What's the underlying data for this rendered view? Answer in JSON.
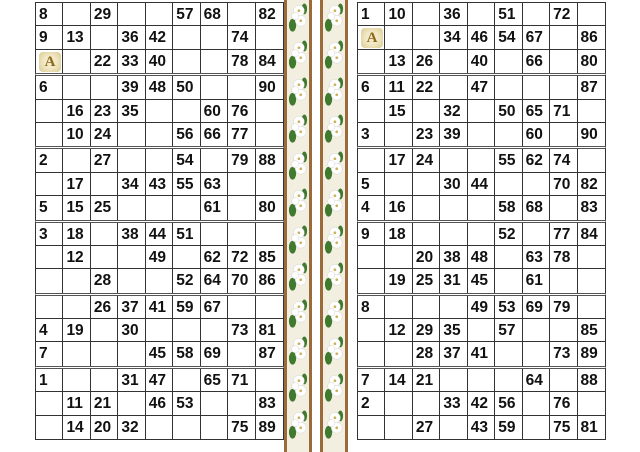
{
  "logo_letter": "A",
  "left_tickets": [
    [
      [
        "8",
        "",
        "29",
        "",
        "",
        "57",
        "68",
        "",
        "82"
      ],
      [
        "9",
        "13",
        "",
        "36",
        "42",
        "",
        "",
        "74",
        ""
      ],
      [
        "A",
        "",
        "22",
        "33",
        "40",
        "",
        "",
        "78",
        "84"
      ]
    ],
    [
      [
        "6",
        "",
        "",
        "39",
        "48",
        "50",
        "",
        "",
        "90"
      ],
      [
        "",
        "16",
        "23",
        "35",
        "",
        "",
        "60",
        "76",
        ""
      ],
      [
        "",
        "10",
        "24",
        "",
        "",
        "56",
        "66",
        "77",
        ""
      ]
    ],
    [
      [
        "2",
        "",
        "27",
        "",
        "",
        "54",
        "",
        "79",
        "88"
      ],
      [
        "",
        "17",
        "",
        "34",
        "43",
        "55",
        "63",
        "",
        ""
      ],
      [
        "5",
        "15",
        "25",
        "",
        "",
        "",
        "61",
        "",
        "80"
      ]
    ],
    [
      [
        "3",
        "18",
        "",
        "38",
        "44",
        "51",
        "",
        "",
        ""
      ],
      [
        "",
        "12",
        "",
        "",
        "49",
        "",
        "62",
        "72",
        "85"
      ],
      [
        "",
        "",
        "28",
        "",
        "",
        "52",
        "64",
        "70",
        "86"
      ]
    ],
    [
      [
        "",
        "",
        "26",
        "37",
        "41",
        "59",
        "67",
        "",
        ""
      ],
      [
        "4",
        "19",
        "",
        "30",
        "",
        "",
        "",
        "73",
        "81"
      ],
      [
        "7",
        "",
        "",
        "",
        "45",
        "58",
        "69",
        "",
        "87"
      ]
    ],
    [
      [
        "1",
        "",
        "",
        "31",
        "47",
        "",
        "65",
        "71",
        ""
      ],
      [
        "",
        "11",
        "21",
        "",
        "46",
        "53",
        "",
        "",
        "83"
      ],
      [
        "",
        "14",
        "20",
        "32",
        "",
        "",
        "",
        "75",
        "89"
      ]
    ]
  ],
  "right_tickets": [
    [
      [
        "1",
        "10",
        "",
        "36",
        "",
        "51",
        "",
        "72",
        ""
      ],
      [
        "A",
        "",
        "",
        "34",
        "46",
        "54",
        "67",
        "",
        "86"
      ],
      [
        "",
        "13",
        "26",
        "",
        "40",
        "",
        "66",
        "",
        "80"
      ]
    ],
    [
      [
        "6",
        "11",
        "22",
        "",
        "47",
        "",
        "",
        "",
        "87"
      ],
      [
        "",
        "15",
        "",
        "32",
        "",
        "50",
        "65",
        "71",
        ""
      ],
      [
        "3",
        "",
        "23",
        "39",
        "",
        "",
        "60",
        "",
        "90"
      ]
    ],
    [
      [
        "",
        "17",
        "24",
        "",
        "",
        "55",
        "62",
        "74",
        ""
      ],
      [
        "5",
        "",
        "",
        "30",
        "44",
        "",
        "",
        "70",
        "82"
      ],
      [
        "4",
        "16",
        "",
        "",
        "",
        "58",
        "68",
        "",
        "83"
      ]
    ],
    [
      [
        "9",
        "18",
        "",
        "",
        "",
        "52",
        "",
        "77",
        "84"
      ],
      [
        "",
        "",
        "20",
        "38",
        "48",
        "",
        "63",
        "78",
        ""
      ],
      [
        "",
        "19",
        "25",
        "31",
        "45",
        "",
        "61",
        "",
        ""
      ]
    ],
    [
      [
        "8",
        "",
        "",
        "",
        "49",
        "53",
        "69",
        "79",
        ""
      ],
      [
        "",
        "12",
        "29",
        "35",
        "",
        "57",
        "",
        "",
        "85"
      ],
      [
        "",
        "",
        "28",
        "37",
        "41",
        "",
        "",
        "73",
        "89"
      ]
    ],
    [
      [
        "7",
        "14",
        "21",
        "",
        "",
        "",
        "64",
        "",
        "88"
      ],
      [
        "2",
        "",
        "",
        "33",
        "42",
        "56",
        "",
        "76",
        ""
      ],
      [
        "",
        "",
        "27",
        "",
        "43",
        "59",
        "",
        "75",
        "81"
      ]
    ]
  ],
  "colors": {
    "grid": "#333333",
    "strip_border": "#9b6a3a",
    "flower": "#ffffff",
    "leaf": "#3f7a2e"
  }
}
